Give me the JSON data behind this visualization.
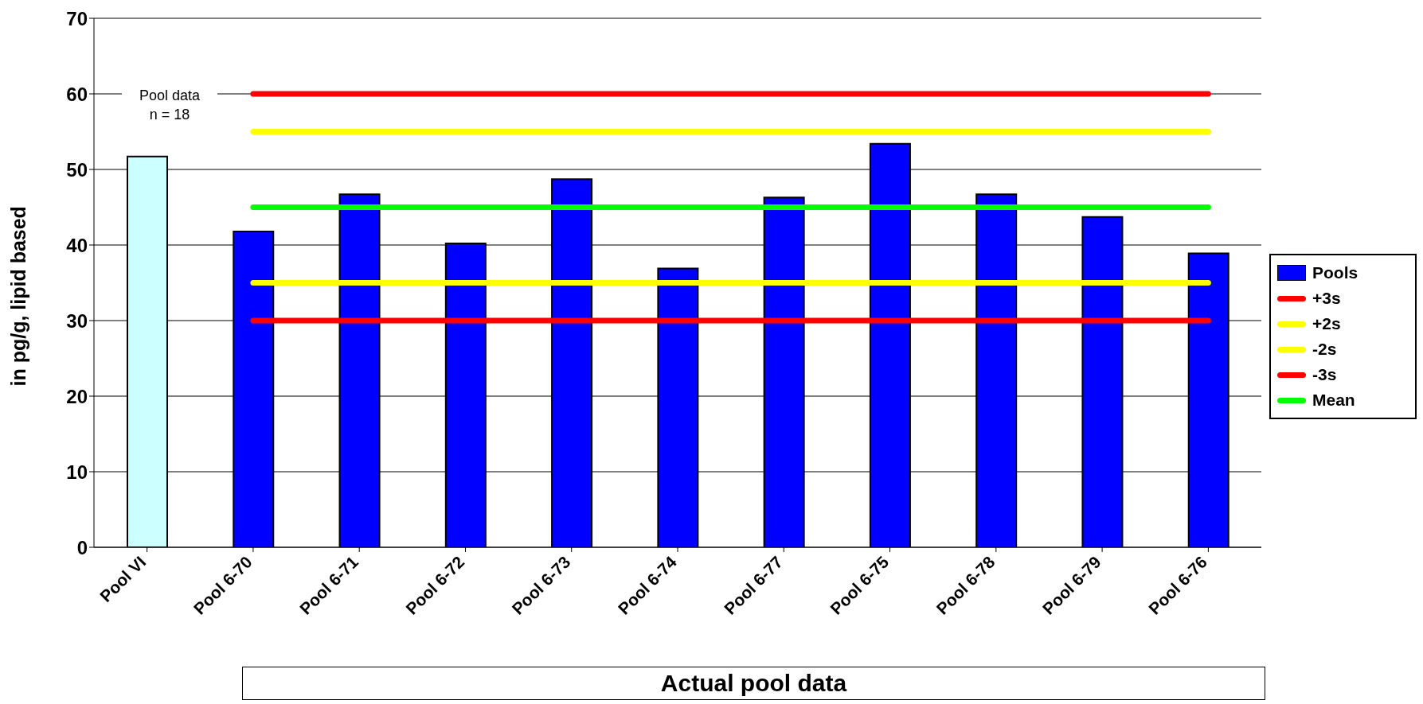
{
  "chart_data": {
    "type": "bar",
    "ylabel": "in pg/g, lipid based",
    "xlabel": "Actual pool data",
    "annotations": [
      "Pool data\nn = 18"
    ],
    "categories": [
      "Pool VI",
      "Pool 6-70",
      "Pool 6-71",
      "Pool 6-72",
      "Pool 6-73",
      "Pool 6-74",
      "Pool 6-77",
      "Pool 6-75",
      "Pool 6-78",
      "Pool 6-79",
      "Pool  6-76"
    ],
    "series": [
      {
        "name": "Pools",
        "color": "#0000ff",
        "colors": [
          "#ccffff",
          "#0000ff",
          "#0000ff",
          "#0000ff",
          "#0000ff",
          "#0000ff",
          "#0000ff",
          "#0000ff",
          "#0000ff",
          "#0000ff",
          "#0000ff"
        ],
        "values": [
          51.7,
          41.8,
          46.7,
          40.2,
          48.7,
          36.9,
          46.3,
          53.4,
          46.7,
          43.7,
          38.9
        ]
      },
      {
        "name": "+3s",
        "type": "line",
        "color": "#ff0000",
        "values": [
          null,
          60,
          60,
          60,
          60,
          60,
          60,
          60,
          60,
          60,
          60
        ]
      },
      {
        "name": "+2s",
        "type": "line",
        "color": "#ffff00",
        "values": [
          null,
          55,
          55,
          55,
          55,
          55,
          55,
          55,
          55,
          55,
          55
        ]
      },
      {
        "name": "-2s",
        "type": "line",
        "color": "#ffff00",
        "values": [
          null,
          35,
          35,
          35,
          35,
          35,
          35,
          35,
          35,
          35,
          35
        ]
      },
      {
        "name": "-3s",
        "type": "line",
        "color": "#ff0000",
        "values": [
          null,
          30,
          30,
          30,
          30,
          30,
          30,
          30,
          30,
          30,
          30
        ]
      },
      {
        "name": "Mean",
        "type": "line",
        "color": "#00ff00",
        "values": [
          null,
          45,
          45,
          45,
          45,
          45,
          45,
          45,
          45,
          45,
          45
        ]
      }
    ],
    "ylim": [
      0,
      70
    ],
    "yticks": [
      0,
      10,
      20,
      30,
      40,
      50,
      60,
      70
    ],
    "grid": "y",
    "legend": "right",
    "marker": "none",
    "line_style": "solid"
  }
}
